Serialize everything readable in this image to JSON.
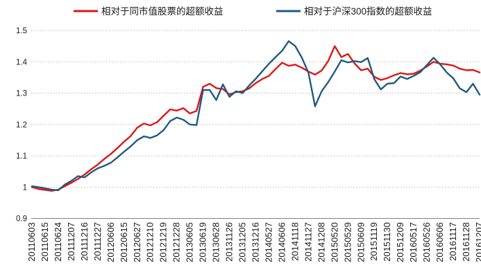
{
  "chart_data": {
    "type": "line",
    "title": "",
    "xlabel": "",
    "ylabel": "",
    "ylim": [
      0.9,
      1.5
    ],
    "yticks": [
      "0.9",
      "1",
      "1.1",
      "1.2",
      "1.3",
      "1.4",
      "1.5"
    ],
    "ytick_values": [
      0.9,
      1.0,
      1.1,
      1.2,
      1.3,
      1.4,
      1.5
    ],
    "grid": "horizontal-dotted",
    "legend_position": "top",
    "points_per_category": 2,
    "categories": [
      "20110603",
      "20110615",
      "20110624",
      "20111207",
      "20111216",
      "20111227",
      "20120606",
      "20120615",
      "20120627",
      "20121210",
      "20121219",
      "20121228",
      "20130605",
      "20130619",
      "20130628",
      "20131126",
      "20131205",
      "20131216",
      "20140527",
      "20140606",
      "20141118",
      "20141127",
      "20141208",
      "20150520",
      "20150529",
      "20150609",
      "20151119",
      "20151130",
      "20151209",
      "20160517",
      "20160526",
      "20160606",
      "20161117",
      "20161128",
      "20161207"
    ],
    "series": [
      {
        "name": "相对于同市值股票的超额收益",
        "color": "#e01515",
        "values": [
          1.0,
          0.994,
          0.991,
          0.988,
          0.992,
          1.003,
          1.014,
          1.026,
          1.04,
          1.057,
          1.072,
          1.09,
          1.106,
          1.125,
          1.145,
          1.163,
          1.19,
          1.203,
          1.197,
          1.207,
          1.228,
          1.248,
          1.244,
          1.252,
          1.235,
          1.243,
          1.32,
          1.33,
          1.316,
          1.313,
          1.296,
          1.303,
          1.306,
          1.315,
          1.332,
          1.345,
          1.355,
          1.377,
          1.397,
          1.387,
          1.391,
          1.381,
          1.369,
          1.359,
          1.372,
          1.402,
          1.45,
          1.415,
          1.425,
          1.395,
          1.373,
          1.378,
          1.352,
          1.342,
          1.348,
          1.357,
          1.364,
          1.36,
          1.362,
          1.372,
          1.385,
          1.4,
          1.394,
          1.392,
          1.388,
          1.378,
          1.373,
          1.374,
          1.366
        ]
      },
      {
        "name": "相对于沪深300指数的超额收益",
        "color": "#1f5b7f",
        "values": [
          1.003,
          1.0,
          0.996,
          0.992,
          0.99,
          1.008,
          1.02,
          1.035,
          1.031,
          1.047,
          1.06,
          1.068,
          1.078,
          1.095,
          1.113,
          1.13,
          1.15,
          1.162,
          1.157,
          1.165,
          1.182,
          1.211,
          1.222,
          1.215,
          1.2,
          1.198,
          1.31,
          1.31,
          1.278,
          1.328,
          1.288,
          1.306,
          1.3,
          1.324,
          1.346,
          1.37,
          1.394,
          1.415,
          1.435,
          1.466,
          1.45,
          1.413,
          1.365,
          1.258,
          1.306,
          1.335,
          1.369,
          1.405,
          1.398,
          1.402,
          1.399,
          1.412,
          1.345,
          1.312,
          1.33,
          1.332,
          1.353,
          1.345,
          1.355,
          1.367,
          1.39,
          1.413,
          1.392,
          1.366,
          1.347,
          1.315,
          1.303,
          1.33,
          1.295
        ]
      }
    ],
    "colors": {
      "gridline": "#b5b5b5",
      "axis_line": "#808080",
      "tick_text": "#1a1a1a",
      "legend_text": "#1a1a1a"
    }
  }
}
